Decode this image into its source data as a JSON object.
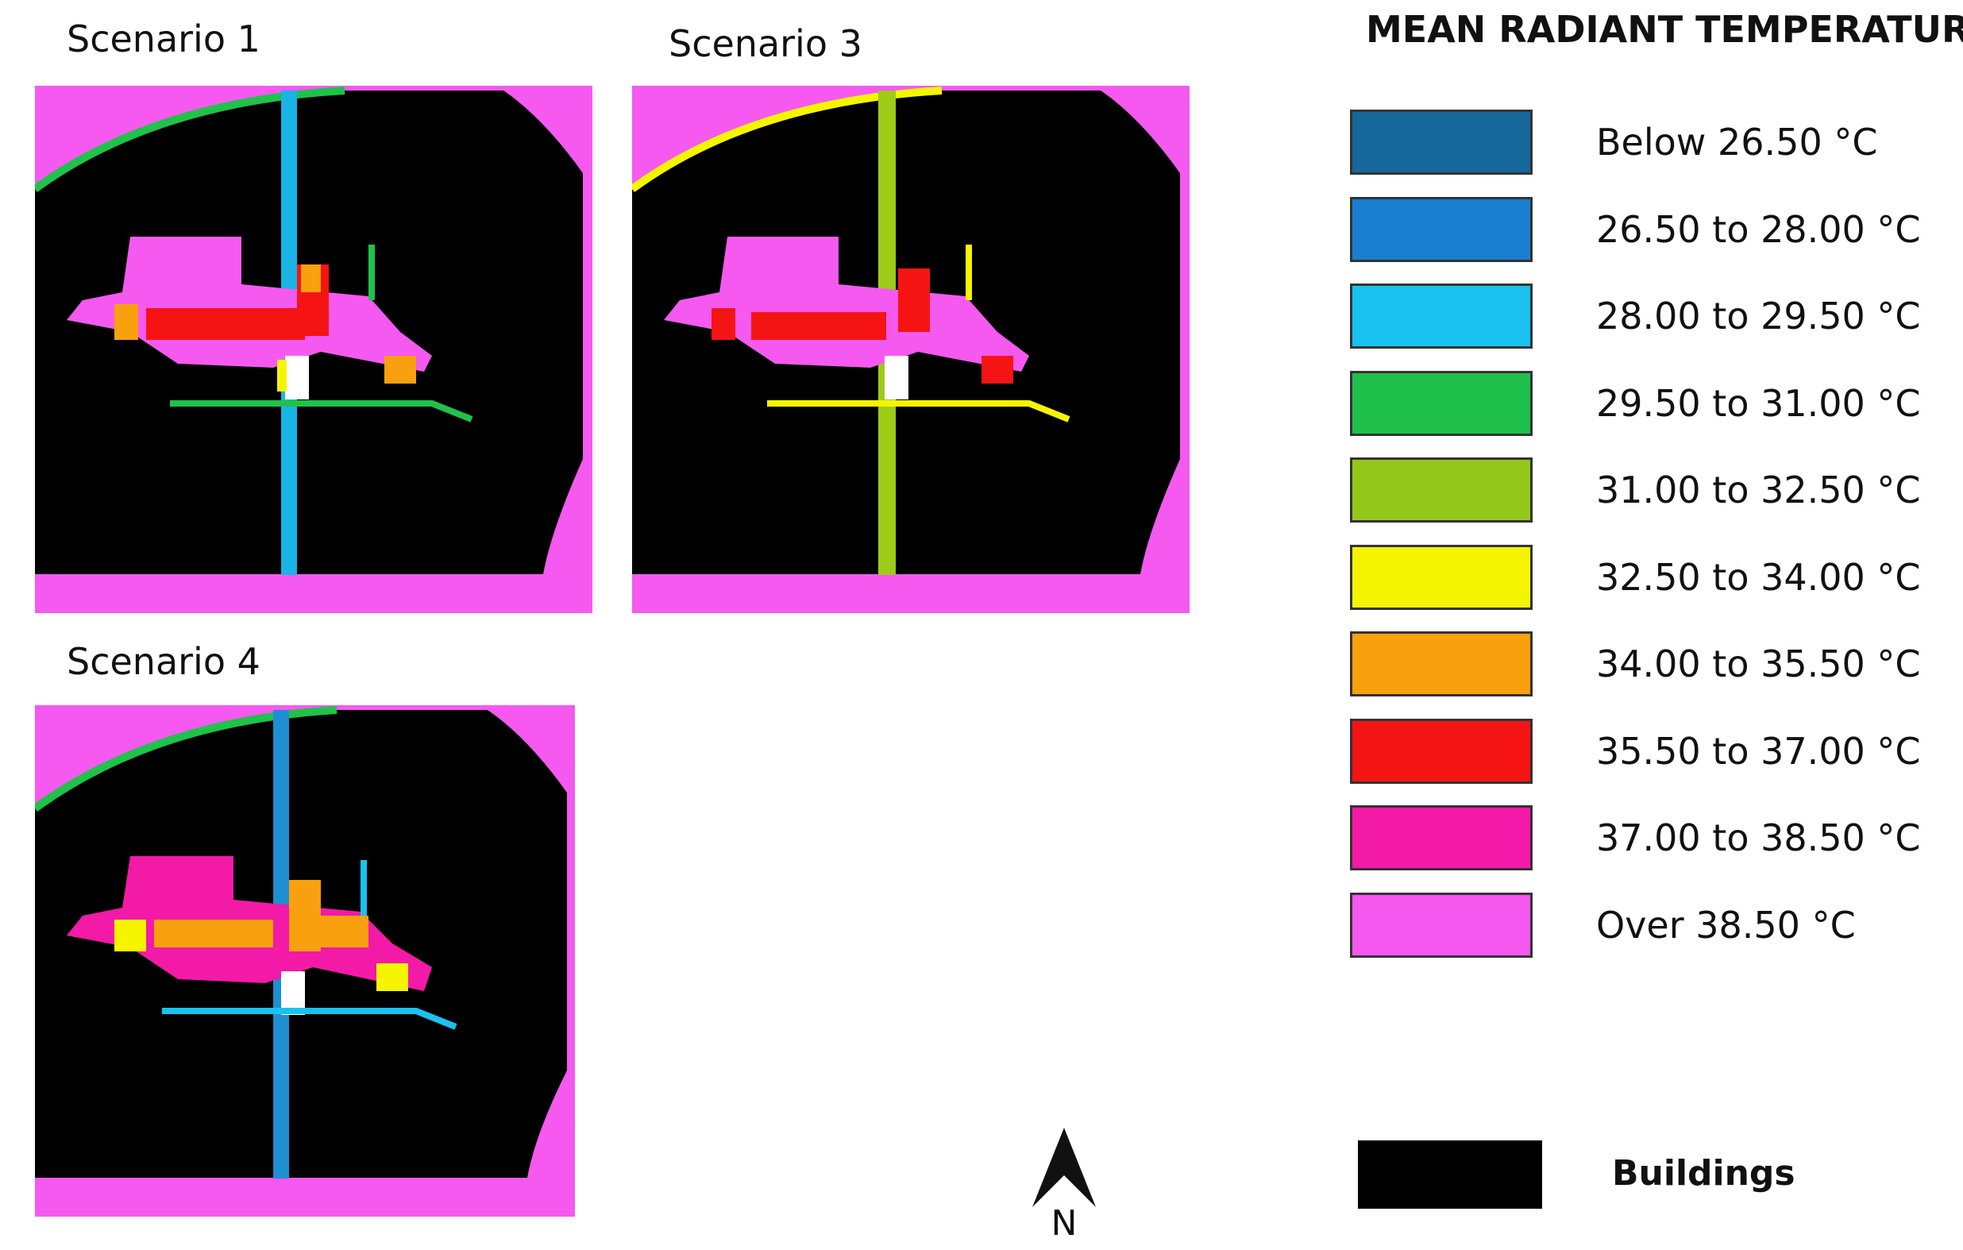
{
  "panels": [
    {
      "title": "Scenario 1",
      "path_color": "#19b5e6",
      "edge_color": "#1fc24a"
    },
    {
      "title": "Scenario 3",
      "path_color": "#9ccc18",
      "edge_color": "#f4f000"
    },
    {
      "title": "Scenario 4",
      "path_color": "#1e8fd0",
      "edge_color": "#1fc24a"
    }
  ],
  "legend": {
    "title": "MEAN RADIANT TEMPERATURE",
    "items": [
      {
        "label": "Below 26.50 °C",
        "color": "#16679a"
      },
      {
        "label": "26.50 to 28.00 °C",
        "color": "#1a7ed0"
      },
      {
        "label": "28.00 to 29.50 °C",
        "color": "#19c2f0"
      },
      {
        "label": "29.50 to 31.00 °C",
        "color": "#1fbf4c"
      },
      {
        "label": "31.00 to 32.50 °C",
        "color": "#93c81a"
      },
      {
        "label": "32.50 to 34.00 °C",
        "color": "#f6f500"
      },
      {
        "label": "34.00 to 35.50 °C",
        "color": "#f9a00e"
      },
      {
        "label": "35.50 to 37.00 °C",
        "color": "#f51414"
      },
      {
        "label": "37.00 to 38.50 °C",
        "color": "#f21aa6"
      },
      {
        "label": "Over 38.50 °C",
        "color": "#f559f0"
      }
    ],
    "buildings_label": "Buildings",
    "buildings_color": "#000000"
  },
  "north_label": "N"
}
